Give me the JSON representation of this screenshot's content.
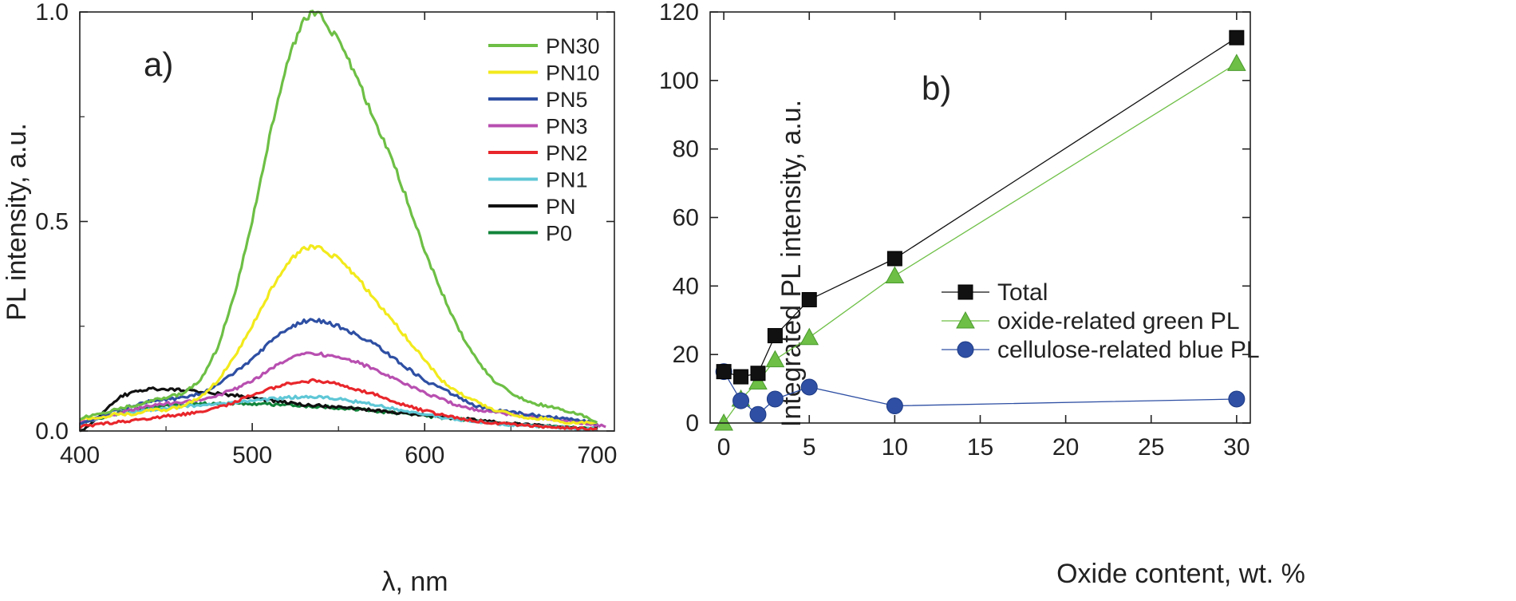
{
  "chart_data": [
    {
      "type": "line",
      "panel_label": "a)",
      "xlabel": "λ, nm",
      "ylabel": "PL intensity, a.u.",
      "xlim": [
        400,
        710
      ],
      "ylim": [
        0,
        1.0
      ],
      "xticks": [
        400,
        500,
        600,
        700
      ],
      "xtick_labels": [
        "400",
        "500",
        "600",
        "700"
      ],
      "yticks": [
        0,
        0.5,
        1.0
      ],
      "ytick_labels": [
        "0.0",
        "0.5",
        "1.0"
      ],
      "legend_position": "top-right",
      "series": [
        {
          "name": "PN30",
          "color": "#6dbf45",
          "x": [
            400,
            410,
            420,
            430,
            440,
            450,
            460,
            470,
            480,
            490,
            500,
            510,
            520,
            530,
            535,
            540,
            550,
            560,
            570,
            580,
            590,
            600,
            610,
            620,
            630,
            640,
            650,
            660,
            670,
            680,
            690,
            700
          ],
          "y": [
            0.03,
            0.04,
            0.05,
            0.06,
            0.07,
            0.08,
            0.09,
            0.12,
            0.2,
            0.33,
            0.5,
            0.7,
            0.88,
            0.98,
            1.0,
            0.99,
            0.93,
            0.85,
            0.75,
            0.66,
            0.55,
            0.43,
            0.33,
            0.24,
            0.17,
            0.12,
            0.09,
            0.07,
            0.06,
            0.05,
            0.04,
            0.02
          ]
        },
        {
          "name": "PN10",
          "color": "#f2ea1c",
          "x": [
            400,
            410,
            420,
            430,
            440,
            450,
            460,
            470,
            480,
            490,
            500,
            510,
            520,
            530,
            535,
            540,
            550,
            560,
            570,
            580,
            590,
            600,
            610,
            620,
            630,
            640,
            650,
            660,
            670,
            680,
            690,
            700
          ],
          "y": [
            0.03,
            0.03,
            0.04,
            0.04,
            0.05,
            0.05,
            0.06,
            0.08,
            0.12,
            0.18,
            0.25,
            0.33,
            0.4,
            0.435,
            0.44,
            0.435,
            0.41,
            0.37,
            0.32,
            0.27,
            0.22,
            0.17,
            0.12,
            0.09,
            0.07,
            0.05,
            0.04,
            0.03,
            0.03,
            0.02,
            0.02,
            0.02
          ]
        },
        {
          "name": "PN5",
          "color": "#2e4fa3",
          "x": [
            400,
            410,
            420,
            430,
            440,
            450,
            460,
            470,
            480,
            490,
            500,
            510,
            520,
            530,
            535,
            540,
            550,
            560,
            570,
            580,
            590,
            600,
            610,
            620,
            630,
            640,
            650,
            660,
            670,
            680,
            690,
            700
          ],
          "y": [
            0.02,
            0.03,
            0.05,
            0.06,
            0.07,
            0.075,
            0.08,
            0.09,
            0.11,
            0.14,
            0.17,
            0.21,
            0.245,
            0.262,
            0.265,
            0.262,
            0.25,
            0.23,
            0.21,
            0.18,
            0.15,
            0.12,
            0.1,
            0.08,
            0.06,
            0.05,
            0.045,
            0.04,
            0.035,
            0.03,
            0.025,
            0.02
          ]
        },
        {
          "name": "PN3",
          "color": "#b84fb0",
          "x": [
            400,
            410,
            420,
            430,
            440,
            450,
            460,
            470,
            480,
            490,
            500,
            510,
            520,
            530,
            535,
            540,
            550,
            560,
            570,
            580,
            590,
            600,
            610,
            620,
            630,
            640,
            650,
            660,
            670,
            680,
            690,
            700,
            705
          ],
          "y": [
            0.02,
            0.03,
            0.04,
            0.05,
            0.06,
            0.065,
            0.07,
            0.075,
            0.085,
            0.1,
            0.12,
            0.145,
            0.17,
            0.183,
            0.185,
            0.183,
            0.175,
            0.165,
            0.15,
            0.13,
            0.11,
            0.09,
            0.075,
            0.06,
            0.05,
            0.045,
            0.04,
            0.035,
            0.03,
            0.025,
            0.02,
            0.015,
            0.01
          ]
        },
        {
          "name": "PN2",
          "color": "#e8262b",
          "x": [
            400,
            410,
            420,
            430,
            440,
            450,
            460,
            470,
            480,
            490,
            500,
            510,
            520,
            530,
            535,
            540,
            550,
            560,
            570,
            580,
            590,
            600,
            610,
            620,
            630,
            640,
            650,
            660,
            670,
            680,
            690,
            700
          ],
          "y": [
            0.01,
            0.015,
            0.02,
            0.025,
            0.03,
            0.035,
            0.04,
            0.045,
            0.055,
            0.07,
            0.085,
            0.1,
            0.112,
            0.118,
            0.12,
            0.118,
            0.112,
            0.1,
            0.088,
            0.074,
            0.06,
            0.048,
            0.038,
            0.03,
            0.024,
            0.02,
            0.016,
            0.013,
            0.01,
            0.008,
            0.006,
            0.005
          ]
        },
        {
          "name": "PN1",
          "color": "#5fc7d6",
          "x": [
            400,
            410,
            420,
            430,
            440,
            450,
            460,
            470,
            480,
            490,
            500,
            510,
            520,
            530,
            540,
            550,
            560,
            570,
            580,
            590,
            600,
            610,
            620,
            630,
            640,
            650,
            660,
            670,
            680,
            690,
            700
          ],
          "y": [
            0.02,
            0.03,
            0.04,
            0.045,
            0.05,
            0.055,
            0.06,
            0.062,
            0.065,
            0.068,
            0.072,
            0.076,
            0.08,
            0.082,
            0.08,
            0.076,
            0.07,
            0.063,
            0.055,
            0.047,
            0.04,
            0.033,
            0.027,
            0.022,
            0.018,
            0.015,
            0.012,
            0.01,
            0.008,
            0.006,
            0.005
          ]
        },
        {
          "name": "PN",
          "color": "#111111",
          "x": [
            400,
            405,
            410,
            415,
            420,
            425,
            430,
            440,
            450,
            460,
            470,
            480,
            490,
            500,
            510,
            520,
            530,
            540,
            550,
            560,
            570,
            580,
            590,
            600,
            610,
            620,
            630,
            640,
            650,
            660,
            670,
            680,
            690,
            700
          ],
          "y": [
            0.0,
            0.01,
            0.03,
            0.05,
            0.07,
            0.085,
            0.09,
            0.1,
            0.1,
            0.097,
            0.094,
            0.09,
            0.085,
            0.08,
            0.074,
            0.068,
            0.063,
            0.06,
            0.057,
            0.054,
            0.05,
            0.046,
            0.042,
            0.038,
            0.034,
            0.03,
            0.026,
            0.022,
            0.018,
            0.015,
            0.012,
            0.009,
            0.007,
            0.005
          ]
        },
        {
          "name": "P0",
          "color": "#11843a",
          "x": [
            400,
            410,
            420,
            430,
            440,
            450,
            460,
            470,
            480,
            490,
            500,
            510,
            520,
            530,
            540,
            550,
            560,
            570,
            580,
            590,
            600,
            610,
            620,
            630,
            640,
            650,
            660,
            670,
            680,
            690,
            700
          ],
          "y": [
            0.02,
            0.03,
            0.04,
            0.05,
            0.055,
            0.06,
            0.063,
            0.065,
            0.066,
            0.066,
            0.065,
            0.064,
            0.062,
            0.06,
            0.058,
            0.055,
            0.052,
            0.048,
            0.044,
            0.04,
            0.036,
            0.032,
            0.028,
            0.024,
            0.02,
            0.017,
            0.014,
            0.011,
            0.009,
            0.007,
            0.005
          ]
        }
      ]
    },
    {
      "type": "line",
      "panel_label": "b)",
      "xlabel": "Oxide content, wt. %",
      "ylabel": "Integrated PL intensity, a.u.",
      "xlim": [
        -0.8,
        30.8
      ],
      "ylim": [
        0,
        120
      ],
      "xticks": [
        0,
        5,
        10,
        15,
        20,
        25,
        30
      ],
      "xtick_labels": [
        "0",
        "5",
        "10",
        "15",
        "20",
        "25",
        "30"
      ],
      "yticks": [
        0,
        20,
        40,
        60,
        80,
        100,
        120
      ],
      "ytick_labels": [
        "0",
        "20",
        "40",
        "60",
        "80",
        "100",
        "120"
      ],
      "legend_position": "center-right",
      "series": [
        {
          "name": "Total",
          "color": "#111111",
          "marker": "square",
          "x": [
            0,
            1,
            2,
            3,
            5,
            10,
            30
          ],
          "values": [
            15,
            13.5,
            14.5,
            25.5,
            36,
            48,
            112.5
          ]
        },
        {
          "name": "oxide-related green PL",
          "color": "#6dbf45",
          "marker": "triangle",
          "x": [
            0,
            1,
            2,
            3,
            5,
            10,
            30
          ],
          "values": [
            0,
            7,
            12,
            18.5,
            25,
            43,
            105
          ]
        },
        {
          "name": "cellulose-related blue PL",
          "color": "#2e4fa3",
          "marker": "circle",
          "x": [
            0,
            1,
            2,
            3,
            5,
            10,
            30
          ],
          "values": [
            15,
            6.5,
            2.5,
            7,
            10.5,
            5,
            7
          ]
        }
      ]
    }
  ]
}
